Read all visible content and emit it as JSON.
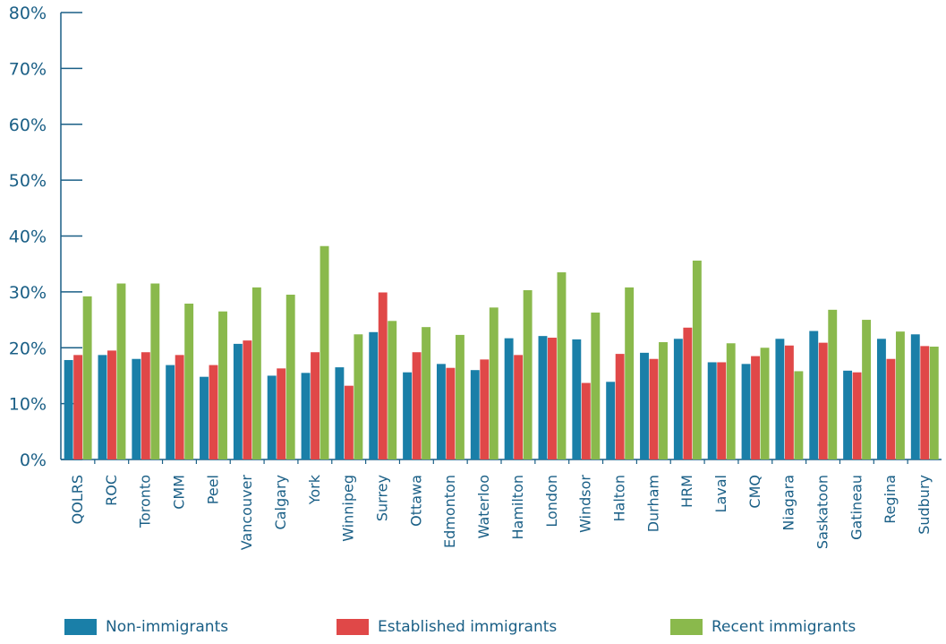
{
  "chart_data": {
    "type": "bar",
    "categories": [
      "QOLRS",
      "ROC",
      "Toronto",
      "CMM",
      "Peel",
      "Vancouver",
      "Calgary",
      "York",
      "Winnipeg",
      "Surrey",
      "Ottawa",
      "Edmonton",
      "Waterloo",
      "Hamilton",
      "London",
      "Windsor",
      "Halton",
      "Durham",
      "HRM",
      "Laval",
      "CMQ",
      "Niagara",
      "Saskatoon",
      "Gatineau",
      "Regina",
      "Sudbury"
    ],
    "series": [
      {
        "name": "Non-immigrants",
        "color": "#1a7fa8",
        "values": [
          17.8,
          18.7,
          18.0,
          16.9,
          14.8,
          20.7,
          15.0,
          15.5,
          16.5,
          22.8,
          15.6,
          17.1,
          16.0,
          21.7,
          22.1,
          21.5,
          13.9,
          19.1,
          21.6,
          17.4,
          17.1,
          21.6,
          23.0,
          15.9,
          21.6,
          22.4
        ]
      },
      {
        "name": "Established immigrants",
        "color": "#e04848",
        "values": [
          18.7,
          19.5,
          19.2,
          18.7,
          16.9,
          21.3,
          16.3,
          19.2,
          13.2,
          29.9,
          19.2,
          16.4,
          17.9,
          18.7,
          21.8,
          13.7,
          18.9,
          18.0,
          23.6,
          17.4,
          18.5,
          20.4,
          20.9,
          15.6,
          18.0,
          20.3
        ]
      },
      {
        "name": "Recent immigrants",
        "color": "#8ab94c",
        "values": [
          29.2,
          31.5,
          31.5,
          27.9,
          26.5,
          30.8,
          29.5,
          38.2,
          22.4,
          24.8,
          23.7,
          22.3,
          27.2,
          30.3,
          33.5,
          26.3,
          30.8,
          21.0,
          35.6,
          20.8,
          20.0,
          15.8,
          26.8,
          25.0,
          22.9,
          20.2
        ]
      }
    ],
    "ylim": [
      0,
      80
    ],
    "yticks": [
      "0%",
      "10%",
      "20%",
      "30%",
      "40%",
      "50%",
      "60%",
      "70%",
      "80%"
    ],
    "ytick_values": [
      0,
      10,
      20,
      30,
      40,
      50,
      60,
      70,
      80
    ],
    "legend": "bottom",
    "grid": false
  },
  "legend": {
    "items": [
      {
        "label": "Non-immigrants",
        "color": "#1a7fa8"
      },
      {
        "label": "Established immigrants",
        "color": "#e04848"
      },
      {
        "label": "Recent immigrants",
        "color": "#8ab94c"
      }
    ]
  },
  "colors": {
    "axis": "#1a5f86",
    "text": "#1a5f86"
  }
}
